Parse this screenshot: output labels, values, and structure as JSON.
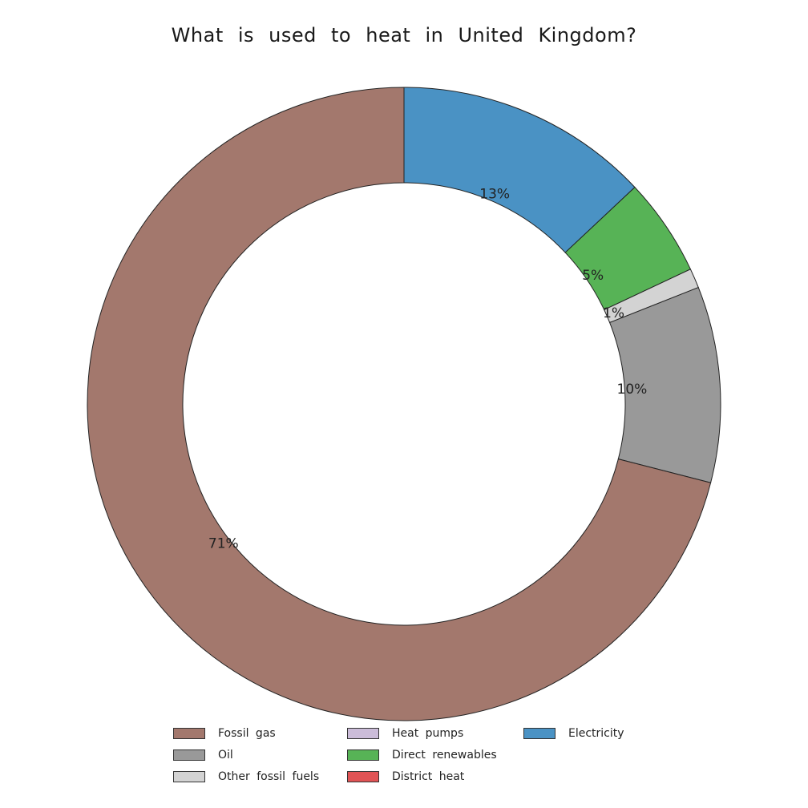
{
  "chart_data": {
    "type": "pie",
    "variant": "donut",
    "title": "What is used to heat in United Kingdom?",
    "series": [
      {
        "name": "Fossil gas",
        "value": 71,
        "label": "71%",
        "color": "#a3786d"
      },
      {
        "name": "Oil",
        "value": 10,
        "label": "10%",
        "color": "#999999"
      },
      {
        "name": "Other fossil fuels",
        "value": 1,
        "label": "1%",
        "color": "#d3d3d3"
      },
      {
        "name": "Heat pumps",
        "value": 0,
        "label": "",
        "color": "#cbbcd9"
      },
      {
        "name": "Direct renewables",
        "value": 5,
        "label": "5%",
        "color": "#57b356"
      },
      {
        "name": "District heat",
        "value": 0,
        "label": "",
        "color": "#e05355"
      },
      {
        "name": "Electricity",
        "value": 13,
        "label": "13%",
        "color": "#4a92c4"
      }
    ],
    "slice_order_clockwise_from_top": [
      "Electricity",
      "Direct renewables",
      "Other fossil fuels",
      "Oil",
      "Fossil gas"
    ],
    "legend": {
      "placement": "bottom",
      "items": [
        "Fossil gas",
        "Oil",
        "Other fossil fuels",
        "Heat pumps",
        "Direct renewables",
        "District heat",
        "Electricity"
      ]
    }
  }
}
